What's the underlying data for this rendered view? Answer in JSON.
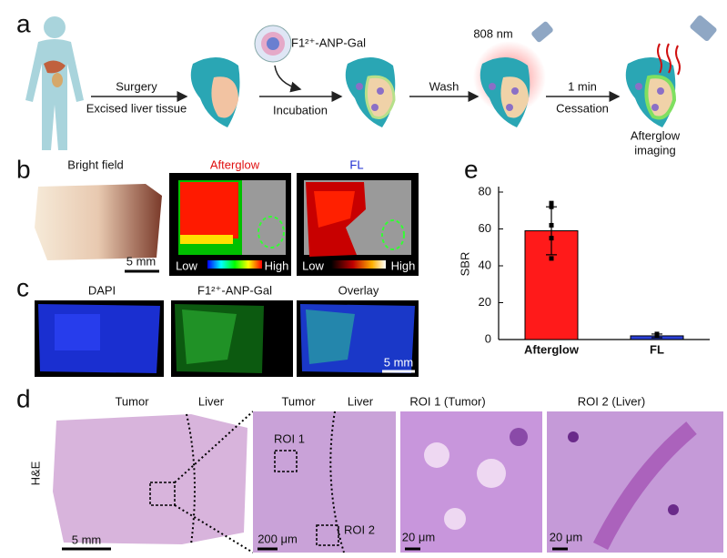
{
  "panel_labels": [
    "a",
    "b",
    "c",
    "d",
    "e"
  ],
  "panel_a": {
    "surgery": "Surgery",
    "excised": "Excised liver tissue",
    "probe": "F1²⁺-ANP-Gal",
    "incubation": "Incubation",
    "wash": "Wash",
    "laser": "808 nm",
    "time": "1 min",
    "cessation": "Cessation",
    "result": [
      "Afterglow",
      "imaging"
    ]
  },
  "panel_b": {
    "titles": [
      "Bright field",
      "Afterglow",
      "FL"
    ],
    "scale_bar": "5 mm",
    "colorbar_afterglow": [
      "Low",
      "High"
    ],
    "colorbar_fl": [
      "Low",
      "High"
    ]
  },
  "panel_c": {
    "titles": [
      "DAPI",
      "F1²⁺-ANP-Gal",
      "Overlay"
    ],
    "scale_bar": "5 mm"
  },
  "panel_d": {
    "stain": "H&E",
    "overview_labels": [
      "Tumor",
      "Liver"
    ],
    "zoom_labels": [
      "Tumor",
      "Liver"
    ],
    "roi_titles": [
      "ROI 1 (Tumor)",
      "ROI 2 (Liver)"
    ],
    "roi_boxes": [
      "ROI 1",
      "ROI 2"
    ],
    "scale_bars": [
      "5 mm",
      "200 μm",
      "20 μm",
      "20 μm"
    ]
  },
  "chart_data": {
    "type": "bar",
    "ylabel": "SBR",
    "categories": [
      "Afterglow",
      "FL"
    ],
    "values": [
      59,
      2
    ],
    "errors": [
      13,
      1
    ],
    "points": [
      [
        74,
        72,
        62,
        55,
        44
      ],
      [
        2,
        3,
        2.5
      ]
    ],
    "colors": [
      "#ff1a1a",
      "#2a3fd6"
    ],
    "ylim": [
      0,
      80
    ],
    "yticks": [
      0,
      20,
      40,
      60,
      80
    ]
  }
}
